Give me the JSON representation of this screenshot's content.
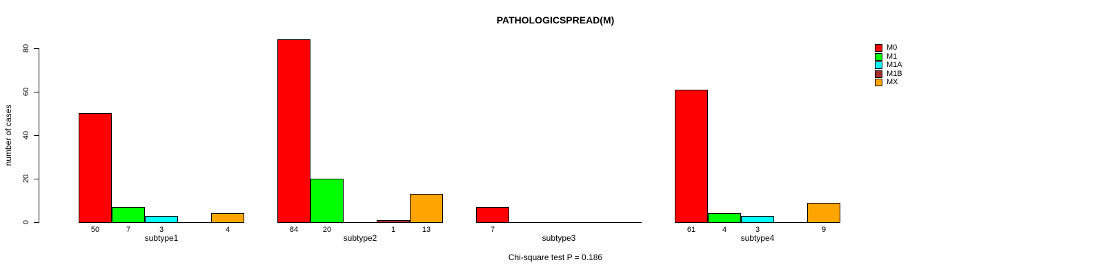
{
  "chart_data": {
    "type": "bar",
    "title": "PATHOLOGICSPREAD(M)",
    "ylabel": "number of cases",
    "caption": "Chi-square test P = 0.186",
    "categories": [
      "subtype1",
      "subtype2",
      "subtype3",
      "subtype4"
    ],
    "series": [
      {
        "name": "M0",
        "color": "#FF0000",
        "values": [
          50,
          84,
          7,
          61
        ]
      },
      {
        "name": "M1",
        "color": "#00FF00",
        "values": [
          7,
          20,
          0,
          4
        ]
      },
      {
        "name": "M1A",
        "color": "#00FFFF",
        "values": [
          3,
          0,
          0,
          3
        ]
      },
      {
        "name": "M1B",
        "color": "#A52A2A",
        "values": [
          0,
          1,
          0,
          0
        ]
      },
      {
        "name": "MX",
        "color": "#FFA500",
        "values": [
          4,
          13,
          0,
          9
        ]
      }
    ],
    "y_ticks": [
      0,
      20,
      40,
      60,
      80
    ],
    "ylim": [
      0,
      84
    ],
    "grid": false,
    "legend_position": "right",
    "bar_value_labels_shown_when": "value > 0",
    "axis_color": "#000000",
    "bar_border_color": "#000000"
  }
}
